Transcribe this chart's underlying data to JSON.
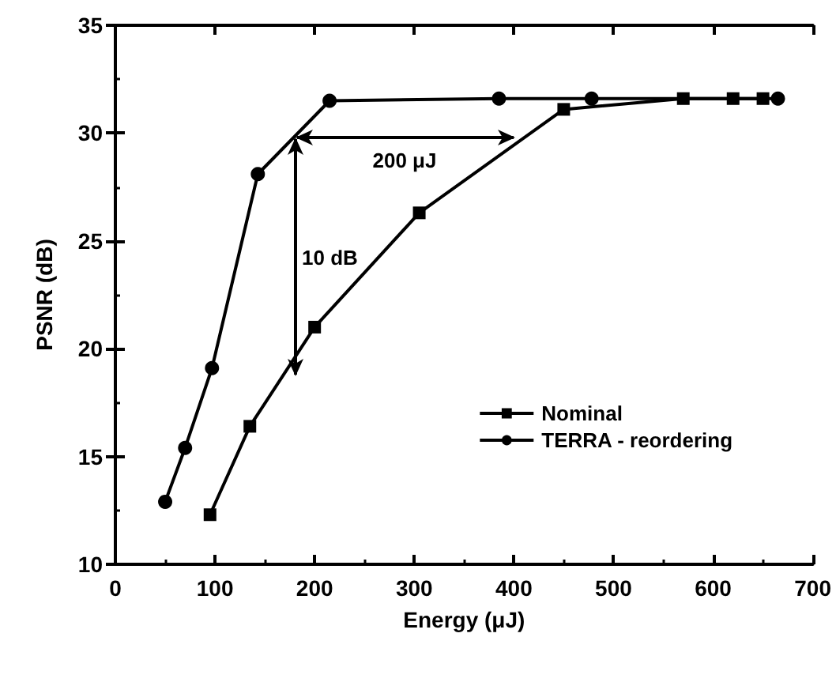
{
  "chart_data": {
    "type": "line",
    "xlabel": "Energy (μJ)",
    "ylabel": "PSNR (dB)",
    "xlim": [
      0,
      700
    ],
    "xticks": [
      0,
      100,
      200,
      300,
      400,
      500,
      600,
      700
    ],
    "ylim": [
      10,
      35
    ],
    "yticks": [
      10,
      15,
      20,
      25,
      30,
      35
    ],
    "series": [
      {
        "name": "Nominal",
        "color": "#000000",
        "marker": "square",
        "x": [
          95,
          135,
          200,
          305,
          450,
          570,
          620,
          650
        ],
        "values": [
          12.3,
          16.4,
          21,
          26.3,
          31.1,
          31.6,
          31.6,
          31.6
        ]
      },
      {
        "name": "TERRA - reordering",
        "color": "#000000",
        "marker": "circle",
        "x": [
          50,
          70,
          97,
          143,
          215,
          385,
          478,
          665
        ],
        "values": [
          12.9,
          15.4,
          19.1,
          28.1,
          31.5,
          31.6,
          31.6,
          31.6
        ]
      }
    ],
    "annotations": [
      "200 μJ",
      "10 dB"
    ],
    "legend": "right",
    "grid": false,
    "line_style": "solid"
  }
}
